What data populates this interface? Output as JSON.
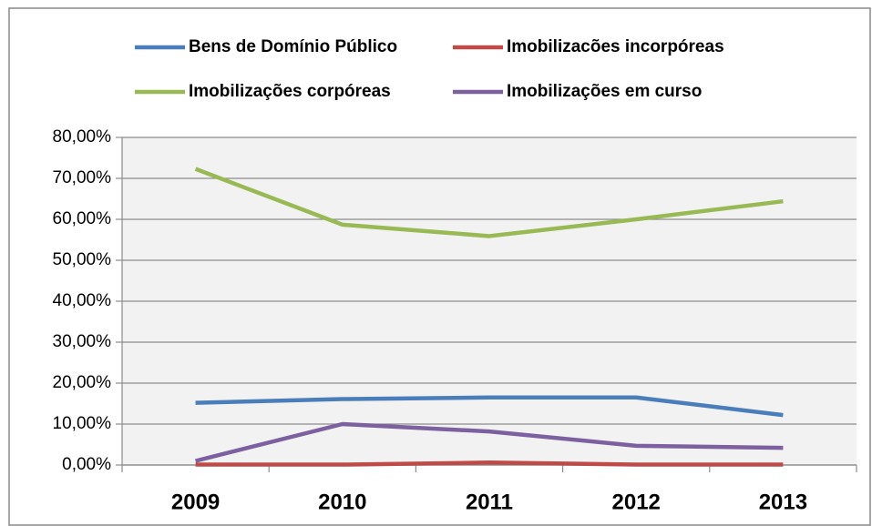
{
  "chart_data": {
    "type": "line",
    "categories": [
      "2009",
      "2010",
      "2011",
      "2012",
      "2013"
    ],
    "series": [
      {
        "name": "Bens de Domínio Público",
        "color": "#4a7ebb",
        "values": [
          15.2,
          16.1,
          16.5,
          16.5,
          12.2
        ]
      },
      {
        "name": "Imobilizacões incorpóreas",
        "color": "#be4b48",
        "values": [
          0.1,
          0.1,
          0.6,
          0.1,
          0.1
        ]
      },
      {
        "name": "Imobilizações corpóreas",
        "color": "#98b954",
        "values": [
          72.3,
          58.7,
          55.9,
          60.0,
          64.4
        ]
      },
      {
        "name": "Imobilizações em curso",
        "color": "#7d60a0",
        "values": [
          1.0,
          10.0,
          8.2,
          4.7,
          4.2
        ]
      }
    ],
    "ylim": [
      0,
      80
    ],
    "yticks": [
      {
        "value": 0,
        "label": "0,00%"
      },
      {
        "value": 10,
        "label": "10,00%"
      },
      {
        "value": 20,
        "label": "20,00%"
      },
      {
        "value": 30,
        "label": "30,00%"
      },
      {
        "value": 40,
        "label": "40,00%"
      },
      {
        "value": 50,
        "label": "50,00%"
      },
      {
        "value": 60,
        "label": "60,00%"
      },
      {
        "value": 70,
        "label": "70,00%"
      },
      {
        "value": 80,
        "label": "80,00%"
      }
    ],
    "grid": true,
    "legend": "top"
  }
}
